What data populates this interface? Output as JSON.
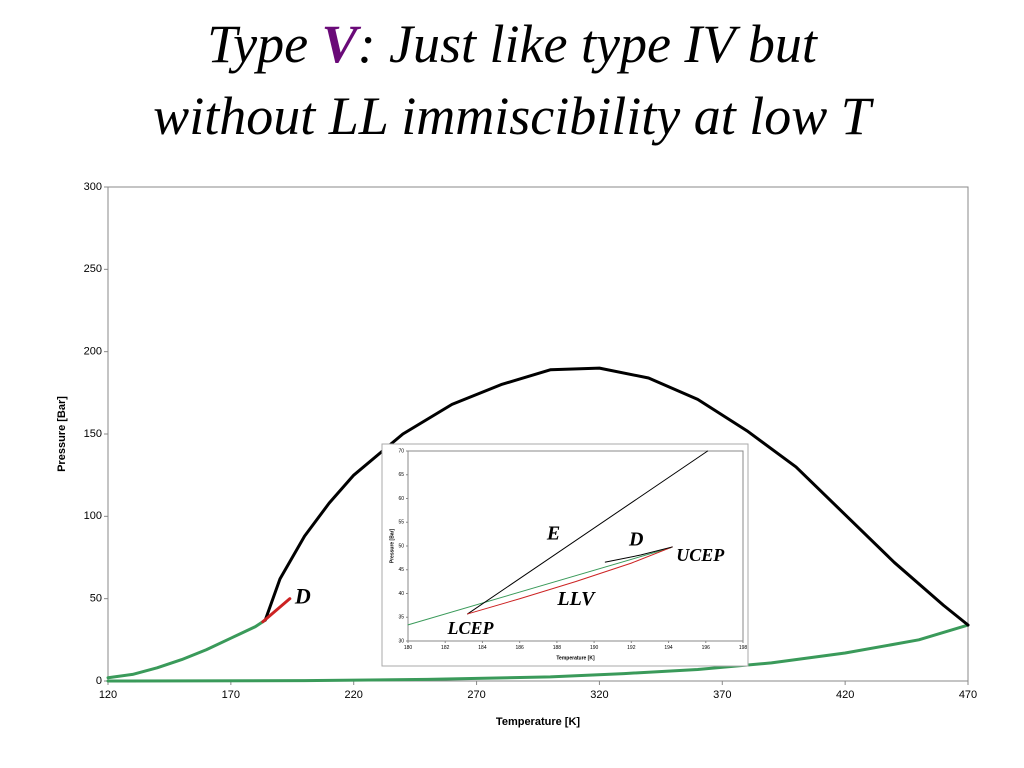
{
  "slide_title": {
    "prefix": "Type ",
    "highlight": "V",
    "line1_rest": ": Just like type IV but",
    "line2": "without LL immiscibility at low T"
  },
  "chart_data": [
    {
      "type": "line",
      "x_label": "Temperature [K]",
      "y_label": "Pressure [Bar]",
      "xlim": [
        120,
        470
      ],
      "xticks": [
        120,
        170,
        220,
        270,
        320,
        370,
        420,
        470
      ],
      "ylim": [
        0,
        300
      ],
      "yticks": [
        0,
        50,
        100,
        150,
        200,
        250,
        300
      ],
      "grid": false,
      "series": [
        {
          "color": "#3a9a5a",
          "x": [
            120,
            130,
            140,
            150,
            160,
            170,
            180,
            184
          ],
          "values": [
            2,
            4,
            8,
            13,
            19,
            26,
            33,
            37
          ]
        },
        {
          "color": "#3a9a5a",
          "x": [
            120,
            200,
            250,
            300,
            330,
            360,
            390,
            420,
            450,
            470
          ],
          "values": [
            0,
            0.2,
            1,
            2.5,
            4.5,
            7,
            11,
            17,
            25,
            34
          ]
        },
        {
          "name": "E",
          "color": "#000000",
          "x": [
            184,
            190,
            200,
            210,
            220,
            240,
            260,
            280,
            300,
            320,
            340,
            360,
            380,
            400,
            420,
            440,
            460,
            470
          ],
          "values": [
            37,
            62,
            88,
            108,
            125,
            150,
            168,
            180,
            189,
            190,
            184,
            171,
            152,
            130,
            101,
            72,
            46,
            34
          ]
        },
        {
          "name": "D",
          "color": "#cc2222",
          "x": [
            183,
            194
          ],
          "values": [
            36,
            50
          ]
        }
      ]
    },
    {
      "type": "line",
      "x_label": "Temperature [K]",
      "y_label": "Pressure [Bar]",
      "xlim": [
        180,
        198
      ],
      "xticks": [
        180,
        182,
        184,
        186,
        188,
        190,
        192,
        194,
        196,
        198
      ],
      "ylim": [
        30,
        70
      ],
      "yticks": [
        30,
        35,
        40,
        45,
        50,
        55,
        60,
        65,
        70
      ],
      "grid": false,
      "series": [
        {
          "color": "#3a9a5a",
          "x": [
            180,
            194.1
          ],
          "values": [
            33.4,
            49.6
          ]
        },
        {
          "name": "E",
          "color": "#000000",
          "x": [
            183.2,
            196.1
          ],
          "values": [
            35.7,
            70
          ]
        },
        {
          "name": "LLV",
          "color": "#cc2222",
          "x": [
            183.2,
            186,
            189,
            192,
            194.2
          ],
          "values": [
            35.7,
            38.9,
            42.5,
            46.4,
            49.8
          ]
        },
        {
          "name": "D",
          "color": "#000000",
          "x": [
            190.6,
            192.5,
            194.2
          ],
          "values": [
            46.6,
            48.1,
            49.8
          ]
        }
      ],
      "annotations": [
        {
          "text": "LCEP",
          "x": 183.2,
          "y": 35.7
        },
        {
          "text": "UCEP",
          "x": 194.2,
          "y": 49.8
        }
      ]
    }
  ]
}
